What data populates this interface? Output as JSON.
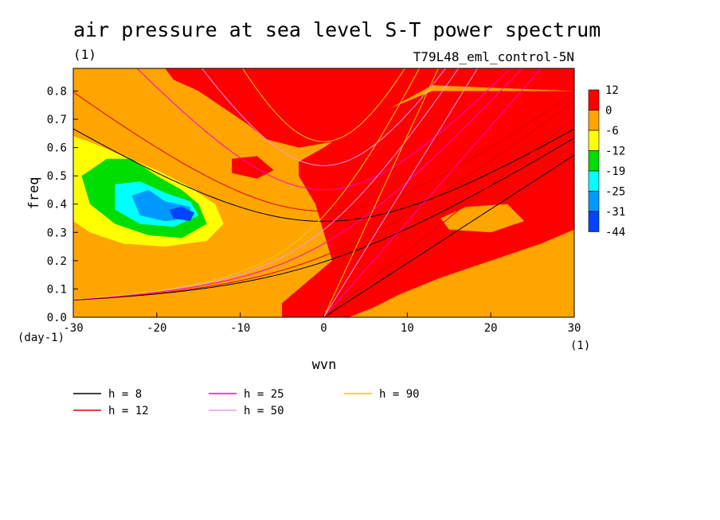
{
  "chart_data": {
    "type": "heatmap",
    "title": "air pressure at sea level S-T power spectrum",
    "subtitle_left": "(1)",
    "subtitle_right": "T79L48_eml_control-5N",
    "xlabel": "wvn",
    "ylabel": "freq",
    "x_unit": "(1)",
    "y_unit": "(day-1)",
    "xlim": [
      -30,
      30
    ],
    "ylim": [
      0,
      0.88
    ],
    "x_ticks": [
      "-30",
      "-20",
      "-10",
      "0",
      "10",
      "20",
      "30"
    ],
    "y_ticks": [
      "0.0",
      "0.1",
      "0.2",
      "0.3",
      "0.4",
      "0.5",
      "0.6",
      "0.7",
      "0.8"
    ],
    "colorbar": {
      "levels": [
        "12",
        "0",
        "-6",
        "-12",
        "-19",
        "-25",
        "-31",
        "-44"
      ],
      "colors": [
        "#ff0000",
        "#ffa500",
        "#ffff00",
        "#00dd00",
        "#00ffff",
        "#0099ff",
        "#0044ff"
      ]
    },
    "regions": [
      {
        "level": "0 to 12",
        "color": "#ff0000",
        "location": "upper right, large wvn > 0 and top"
      },
      {
        "level": "-6 to 0",
        "color": "#ffa500",
        "location": "background"
      },
      {
        "level": "-12 to -6",
        "color": "#ffff00",
        "location": "wvn -30..-13, freq 0.25..0.62"
      },
      {
        "level": "-19 to -12",
        "color": "#00dd00",
        "location": "wvn -29..-15, freq 0.3..0.56"
      },
      {
        "level": "-25 to -19",
        "color": "#00ffff",
        "location": "wvn -25..-16, freq 0.32..0.48"
      },
      {
        "level": "-31 to -25",
        "color": "#0099ff",
        "location": "wvn -23..-16, freq 0.34..0.44"
      },
      {
        "level": "-44 to -31",
        "color": "#0044ff",
        "location": "wvn -18..-16, freq 0.35..0.39"
      }
    ],
    "series": [
      {
        "name": "h =  8",
        "color": "#000000",
        "h": 8
      },
      {
        "name": "h = 12",
        "color": "#dd0000",
        "h": 12
      },
      {
        "name": "h = 25",
        "color": "#ff00cc",
        "h": 25
      },
      {
        "name": "h = 50",
        "color": "#ee99ee",
        "h": 50
      },
      {
        "name": "h = 90",
        "color": "#eecc00",
        "h": 90
      }
    ],
    "legend_placement": "bottom"
  }
}
